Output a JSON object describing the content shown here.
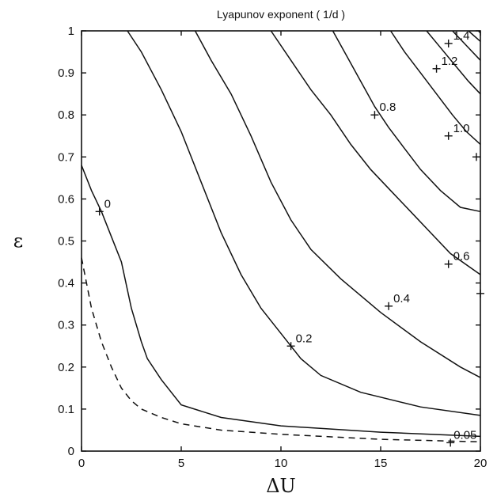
{
  "chart_data": {
    "type": "line",
    "title": "Lyapunov exponent ( 1/d )",
    "xlabel": "ΔU",
    "ylabel": "ε",
    "xlim": [
      0,
      20
    ],
    "ylim": [
      0,
      1
    ],
    "x_ticks": [
      0,
      5,
      10,
      15,
      20
    ],
    "y_ticks": [
      0,
      0.1,
      0.2,
      0.3,
      0.4,
      0.5,
      0.6,
      0.7,
      0.8,
      0.9,
      1
    ],
    "x_tick_labels": [
      "0",
      "5",
      "10",
      "15",
      "20"
    ],
    "y_tick_labels": [
      "0",
      "0.1",
      "0.2",
      "0.3",
      "0.4",
      "0.5",
      "0.6",
      "0.7",
      "0.8",
      "0.9",
      "1"
    ],
    "grid": false,
    "series": [
      {
        "contour_level": "-0.05",
        "dashed": true,
        "points": [
          [
            0,
            0.46
          ],
          [
            0.5,
            0.34
          ],
          [
            1,
            0.26
          ],
          [
            1.5,
            0.2
          ],
          [
            2,
            0.15
          ],
          [
            2.5,
            0.12
          ],
          [
            3,
            0.1
          ],
          [
            4,
            0.08
          ],
          [
            5,
            0.065
          ],
          [
            7,
            0.05
          ],
          [
            10,
            0.04
          ],
          [
            15,
            0.028
          ],
          [
            20,
            0.022
          ]
        ]
      },
      {
        "contour_level": "0",
        "label": "0",
        "label_at": [
          0.9,
          0.57
        ],
        "points": [
          [
            0,
            0.68
          ],
          [
            0.5,
            0.62
          ],
          [
            1,
            0.57
          ],
          [
            1.5,
            0.51
          ],
          [
            2,
            0.45
          ],
          [
            2.5,
            0.34
          ],
          [
            3,
            0.26
          ],
          [
            3.3,
            0.22
          ],
          [
            4,
            0.17
          ],
          [
            5,
            0.11
          ],
          [
            7,
            0.08
          ],
          [
            10,
            0.06
          ],
          [
            15,
            0.045
          ],
          [
            20,
            0.035
          ]
        ]
      },
      {
        "contour_level": "",
        "points": [
          [
            2.3,
            1
          ],
          [
            3,
            0.95
          ],
          [
            4,
            0.86
          ],
          [
            5,
            0.76
          ],
          [
            6,
            0.64
          ],
          [
            7,
            0.52
          ],
          [
            8,
            0.42
          ],
          [
            9,
            0.34
          ],
          [
            10,
            0.28
          ],
          [
            11,
            0.22
          ],
          [
            12,
            0.18
          ],
          [
            14,
            0.14
          ],
          [
            17,
            0.105
          ],
          [
            20,
            0.085
          ]
        ]
      },
      {
        "contour_level": "0.2",
        "label": "0.2",
        "label_at": [
          10.5,
          0.25
        ],
        "points": [
          [
            5.7,
            1
          ],
          [
            6.5,
            0.93
          ],
          [
            7.5,
            0.85
          ],
          [
            8.5,
            0.75
          ],
          [
            9.5,
            0.64
          ],
          [
            10.5,
            0.55
          ],
          [
            11.5,
            0.48
          ],
          [
            13,
            0.41
          ],
          [
            15,
            0.33
          ],
          [
            17,
            0.26
          ],
          [
            19,
            0.2
          ],
          [
            20,
            0.175
          ]
        ]
      },
      {
        "contour_level": "",
        "points": [
          [
            9.5,
            1
          ],
          [
            10.5,
            0.93
          ],
          [
            11.5,
            0.86
          ],
          [
            12.5,
            0.8
          ],
          [
            13.5,
            0.73
          ],
          [
            14.5,
            0.67
          ],
          [
            15.5,
            0.62
          ],
          [
            16.5,
            0.57
          ],
          [
            17.5,
            0.52
          ],
          [
            18.5,
            0.47
          ],
          [
            20,
            0.42
          ]
        ]
      },
      {
        "contour_level": "0.4",
        "label": "0.4",
        "label_at": [
          15.4,
          0.345
        ],
        "points": [
          [
            12.6,
            1
          ],
          [
            13.3,
            0.94
          ],
          [
            14,
            0.88
          ],
          [
            14.7,
            0.82
          ],
          [
            15.4,
            0.77
          ],
          [
            16.2,
            0.72
          ],
          [
            17,
            0.67
          ],
          [
            18,
            0.62
          ],
          [
            19,
            0.58
          ],
          [
            20,
            0.57
          ]
        ]
      },
      {
        "contour_level": "0.6",
        "label": "0.6",
        "label_at": [
          18.4,
          0.445
        ],
        "points": [
          [
            15.5,
            1
          ],
          [
            16.2,
            0.95
          ],
          [
            17,
            0.9
          ],
          [
            17.8,
            0.85
          ],
          [
            18.6,
            0.8
          ],
          [
            19.3,
            0.76
          ],
          [
            20,
            0.73
          ]
        ]
      },
      {
        "contour_level": "0.8",
        "label": "0.8",
        "label_at": [
          14.7,
          0.8
        ],
        "points": [
          [
            17.3,
            1
          ],
          [
            18,
            0.96
          ],
          [
            18.7,
            0.92
          ],
          [
            19.4,
            0.88
          ],
          [
            20,
            0.85
          ]
        ]
      },
      {
        "contour_level": "1.0",
        "label": "1.0",
        "label_at": [
          18.4,
          0.75
        ],
        "points": [
          [
            18.6,
            1
          ],
          [
            19.2,
            0.97
          ],
          [
            20,
            0.93
          ]
        ]
      },
      {
        "contour_level": "1.2",
        "label": "1.2",
        "label_at": [
          17.8,
          0.91
        ],
        "points": [
          [
            19.4,
            1
          ],
          [
            20,
            0.975
          ]
        ]
      },
      {
        "contour_level": "1.4",
        "label": "1.4",
        "label_at": [
          18.4,
          0.97
        ],
        "points": [
          [
            19.9,
            1
          ],
          [
            20,
            0.995
          ]
        ]
      }
    ],
    "extra_labels": [
      {
        "label": "0.05",
        "at": [
          18.5,
          0.02
        ]
      },
      {
        "label": "",
        "at": [
          19.8,
          0.7
        ]
      },
      {
        "label": "",
        "at": [
          20,
          0.375
        ]
      }
    ]
  }
}
